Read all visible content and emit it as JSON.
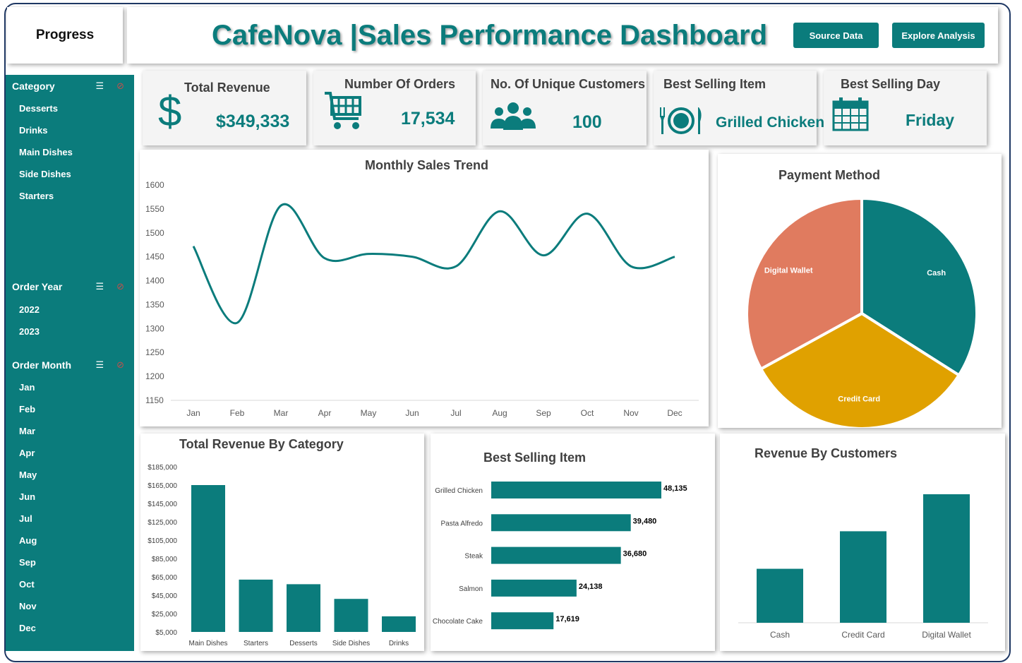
{
  "header": {
    "progress_label": "Progress",
    "title": "CafeNova |Sales Performance Dashboard",
    "source_button": "Source Data",
    "explore_button": "Explore Analysis"
  },
  "slicers": {
    "category": {
      "title": "Category",
      "items": [
        "Desserts",
        "Drinks",
        "Main Dishes",
        "Side Dishes",
        "Starters"
      ]
    },
    "year": {
      "title": "Order Year",
      "items": [
        "2022",
        "2023"
      ]
    },
    "month": {
      "title": "Order Month",
      "items": [
        "Jan",
        "Feb",
        "Mar",
        "Apr",
        "May",
        "Jun",
        "Jul",
        "Aug",
        "Sep",
        "Oct",
        "Nov",
        "Dec"
      ]
    },
    "icons": [
      "multi-select-icon",
      "clear-filter-icon"
    ]
  },
  "kpis": {
    "revenue": {
      "title": "Total Revenue",
      "value": "$349,333",
      "icon": "dollar-icon"
    },
    "orders": {
      "title": "Number Of Orders",
      "value": "17,534",
      "icon": "shopping-cart-icon"
    },
    "customers": {
      "title": "No. Of Unique Customers",
      "value": "100",
      "icon": "users-icon"
    },
    "best_item": {
      "title": "Best Selling Item",
      "value": "Grilled Chicken",
      "icon": "plate-cutlery-icon"
    },
    "best_day": {
      "title": "Best Selling Day",
      "value": "Friday",
      "icon": "calendar-icon"
    }
  },
  "colors": {
    "teal": "#0b7c7c",
    "orange": "#e07b5f",
    "gold": "#e0a100",
    "text": "#404040"
  },
  "chart_data": [
    {
      "id": "monthly",
      "type": "line",
      "title": "Monthly Sales Trend",
      "categories": [
        "Jan",
        "Feb",
        "Mar",
        "Apr",
        "May",
        "Jun",
        "Jul",
        "Aug",
        "Sep",
        "Oct",
        "Nov",
        "Dec"
      ],
      "values": [
        1472,
        1312,
        1557,
        1447,
        1456,
        1450,
        1430,
        1545,
        1453,
        1540,
        1430,
        1450
      ],
      "ylim": [
        1150,
        1600
      ],
      "yticks": [
        "1600",
        "1550",
        "1500",
        "1450",
        "1400",
        "1350",
        "1300",
        "1250",
        "1200",
        "1150"
      ],
      "smooth": true,
      "color": "#0b7c7c"
    },
    {
      "id": "payment",
      "type": "pie",
      "title": "Payment Method",
      "slices": [
        {
          "label": "Cash",
          "value": 34,
          "color": "#0b7c7c"
        },
        {
          "label": "Credit Card",
          "value": 33,
          "color": "#e0a100"
        },
        {
          "label": "Digital Wallet",
          "value": 33,
          "color": "#e07b5f"
        }
      ]
    },
    {
      "id": "category",
      "type": "bar",
      "title": "Total Revenue By Category",
      "categories": [
        "Main Dishes",
        "Starters",
        "Desserts",
        "Side Dishes",
        "Drinks"
      ],
      "values": [
        165000,
        62000,
        57000,
        41000,
        22000
      ],
      "ylim": [
        5000,
        185000
      ],
      "yticks": [
        "$185,000",
        "$165,000",
        "$145,000",
        "$125,000",
        "$105,000",
        "$85,000",
        "$65,000",
        "$45,000",
        "$25,000",
        "$5,000"
      ],
      "color": "#0b7c7c"
    },
    {
      "id": "items",
      "type": "bar",
      "orientation": "horizontal",
      "title": "Best Selling Item",
      "categories": [
        "Grilled Chicken",
        "Pasta Alfredo",
        "Steak",
        "Salmon",
        "Chocolate Cake"
      ],
      "values": [
        48135,
        39480,
        36680,
        24138,
        17619
      ],
      "labels": [
        "48,135",
        "39,480",
        "36,680",
        "24,138",
        "17,619"
      ],
      "color": "#0b7c7c"
    },
    {
      "id": "customers",
      "type": "bar",
      "title": "Revenue By Customers",
      "categories": [
        "Cash",
        "Credit Card",
        "Digital Wallet"
      ],
      "values": [
        105000,
        178000,
        250000
      ],
      "color": "#0b7c7c"
    }
  ]
}
